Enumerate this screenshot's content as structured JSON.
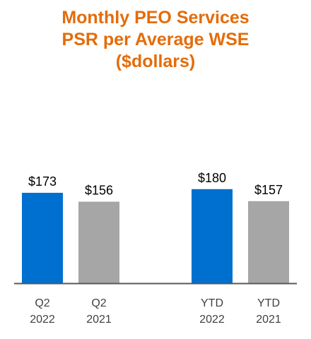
{
  "chart_data": {
    "type": "bar",
    "title": [
      "Monthly PEO Services",
      "PSR per Average WSE",
      "($dollars)"
    ],
    "xlabel": "",
    "ylabel": "",
    "categories": [
      [
        "Q2",
        "2022"
      ],
      [
        "Q2",
        "2021"
      ],
      [
        "YTD",
        "2022"
      ],
      [
        "YTD",
        "2021"
      ]
    ],
    "values": [
      173,
      156,
      180,
      157
    ],
    "value_labels": [
      "$173",
      "$156",
      "$180",
      "$157"
    ],
    "groups": [
      "Q2",
      "YTD"
    ],
    "bar_colors": [
      "#0070d0",
      "#a6a6a6",
      "#0070d0",
      "#a6a6a6"
    ],
    "grid": false,
    "legend": "none"
  },
  "colors": {
    "title": "#e46c0a",
    "current_year": "#0070d0",
    "prior_year": "#a6a6a6",
    "axis": "#595959"
  }
}
